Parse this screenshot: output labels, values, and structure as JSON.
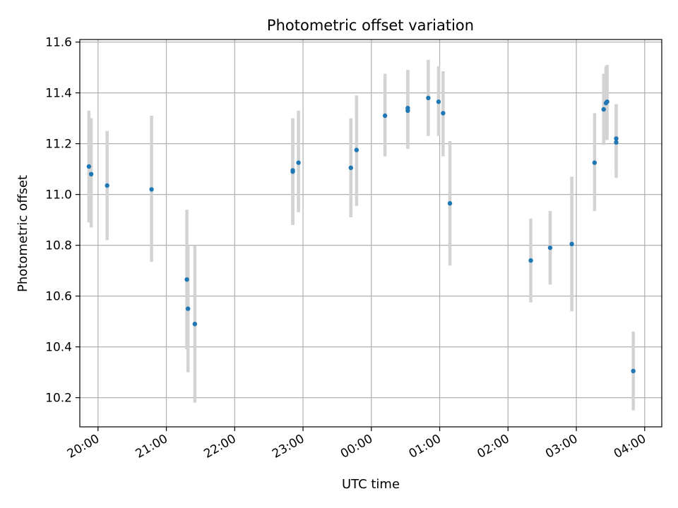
{
  "chart_data": {
    "type": "scatter",
    "title": "Photometric offset variation",
    "xlabel": "UTC time",
    "ylabel": "Photometric offset",
    "grid": true,
    "x_range": [
      "19:44",
      "04:15"
    ],
    "ylim": [
      10.085,
      11.61
    ],
    "x_ticks": [
      "20:00",
      "21:00",
      "22:00",
      "23:00",
      "00:00",
      "01:00",
      "02:00",
      "03:00",
      "04:00"
    ],
    "y_ticks": [
      "10.2",
      "10.4",
      "10.6",
      "10.8",
      "11.0",
      "11.2",
      "11.4",
      "11.6"
    ],
    "colors": {
      "point": "#1f77b4",
      "errorbar": "#d3d3d3",
      "grid": "#b0b0b0"
    },
    "points": [
      {
        "x": "19:52",
        "y": 11.11,
        "err_low": 10.89,
        "err_high": 11.33
      },
      {
        "x": "19:54",
        "y": 11.08,
        "err_low": 10.87,
        "err_high": 11.3
      },
      {
        "x": "20:08",
        "y": 11.035,
        "err_low": 10.82,
        "err_high": 11.25
      },
      {
        "x": "20:47",
        "y": 11.02,
        "err_low": 10.735,
        "err_high": 11.31
      },
      {
        "x": "21:18",
        "y": 10.665,
        "err_low": 10.39,
        "err_high": 10.94
      },
      {
        "x": "21:19",
        "y": 10.55,
        "err_low": 10.3,
        "err_high": 10.8
      },
      {
        "x": "21:25",
        "y": 10.49,
        "err_low": 10.18,
        "err_high": 10.8
      },
      {
        "x": "22:51",
        "y": 11.09,
        "err_low": 10.88,
        "err_high": 11.3
      },
      {
        "x": "22:51",
        "y": 11.095,
        "err_low": 10.88,
        "err_high": 11.3
      },
      {
        "x": "22:56",
        "y": 11.125,
        "err_low": 10.93,
        "err_high": 11.33
      },
      {
        "x": "23:42",
        "y": 11.105,
        "err_low": 10.91,
        "err_high": 11.3
      },
      {
        "x": "23:47",
        "y": 11.175,
        "err_low": 10.955,
        "err_high": 11.39
      },
      {
        "x": "00:12",
        "y": 11.31,
        "err_low": 11.15,
        "err_high": 11.475
      },
      {
        "x": "00:32",
        "y": 11.33,
        "err_low": 11.18,
        "err_high": 11.49
      },
      {
        "x": "00:32",
        "y": 11.34,
        "err_low": 11.18,
        "err_high": 11.49
      },
      {
        "x": "00:50",
        "y": 11.38,
        "err_low": 11.23,
        "err_high": 11.53
      },
      {
        "x": "00:59",
        "y": 11.365,
        "err_low": 11.23,
        "err_high": 11.505
      },
      {
        "x": "01:03",
        "y": 11.32,
        "err_low": 11.15,
        "err_high": 11.485
      },
      {
        "x": "01:09",
        "y": 10.965,
        "err_low": 10.72,
        "err_high": 11.21
      },
      {
        "x": "02:20",
        "y": 10.74,
        "err_low": 10.575,
        "err_high": 10.905
      },
      {
        "x": "02:37",
        "y": 10.79,
        "err_low": 10.645,
        "err_high": 10.935
      },
      {
        "x": "02:56",
        "y": 10.805,
        "err_low": 10.54,
        "err_high": 11.07
      },
      {
        "x": "03:16",
        "y": 11.125,
        "err_low": 10.935,
        "err_high": 11.32
      },
      {
        "x": "03:24",
        "y": 11.335,
        "err_low": 11.195,
        "err_high": 11.475
      },
      {
        "x": "03:26",
        "y": 11.36,
        "err_low": 11.215,
        "err_high": 11.505
      },
      {
        "x": "03:27",
        "y": 11.365,
        "err_low": 11.215,
        "err_high": 11.51
      },
      {
        "x": "03:35",
        "y": 11.205,
        "err_low": 11.065,
        "err_high": 11.355
      },
      {
        "x": "03:35",
        "y": 11.22,
        "err_low": 11.085,
        "err_high": 11.355
      },
      {
        "x": "03:50",
        "y": 10.305,
        "err_low": 10.15,
        "err_high": 10.46
      }
    ]
  }
}
